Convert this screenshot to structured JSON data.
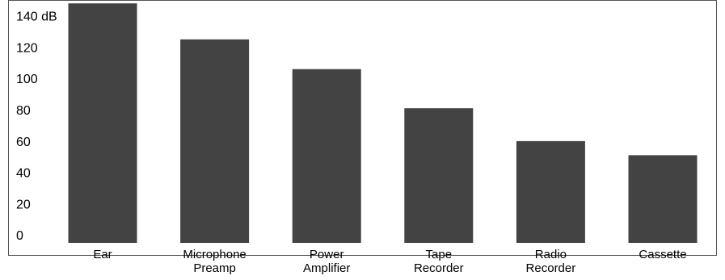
{
  "chart_data": {
    "type": "bar",
    "title": "",
    "xlabel": "",
    "ylabel": "",
    "unit": "dB",
    "categories": [
      [
        "Ear"
      ],
      [
        "Microphone",
        "Preamp"
      ],
      [
        "Power",
        "Amplifier"
      ],
      [
        "Tape",
        "Recorder"
      ],
      [
        "Radio",
        "Recorder"
      ],
      [
        "Cassette"
      ]
    ],
    "values": [
      153,
      130,
      111,
      86,
      65,
      56
    ],
    "ylim": [
      0,
      150
    ],
    "yticks": [
      {
        "value": 0,
        "label": "0"
      },
      {
        "value": 20,
        "label": "20"
      },
      {
        "value": 40,
        "label": "40"
      },
      {
        "value": 60,
        "label": "60"
      },
      {
        "value": 80,
        "label": "80"
      },
      {
        "value": 100,
        "label": "100"
      },
      {
        "value": 120,
        "label": "120"
      },
      {
        "value": 140,
        "label": "140 dB"
      }
    ],
    "bar_color": "#434343",
    "frame_color": "#555555",
    "grid": false,
    "legend": "none"
  }
}
